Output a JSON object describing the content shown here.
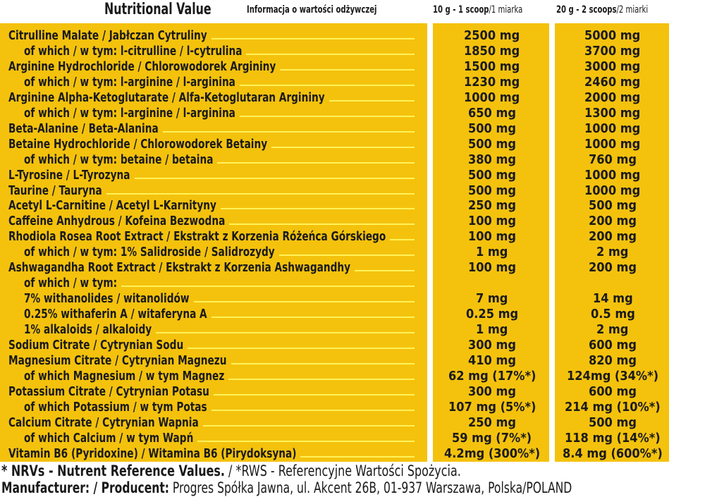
{
  "header": {
    "title": "Nutritional Value",
    "subtitle_pl": "Informacja o wartości odżywczej",
    "col1_bold": "10 g - 1 scoop",
    "col1_rest": "/1 miarka",
    "col2_bold": "20 g - 2 scoops",
    "col2_rest": "/2 miarki"
  },
  "colors": {
    "panel": "#f4c20d",
    "leader": "#fff25a",
    "text": "#1a1a1a",
    "background": "#ffffff"
  },
  "rows": [
    {
      "label": "Citrulline Malate / Jabłczan Cytruliny",
      "v1": "2500 mg",
      "v2": "5000 mg",
      "indent": 0
    },
    {
      "label": "of which / w tym: l-citrulline / l-cytrulina",
      "v1": "1850 mg",
      "v2": "3700 mg",
      "indent": 1
    },
    {
      "label": "Arginine Hydrochloride / Chlorowodorek Argininy",
      "v1": "1500 mg",
      "v2": "3000 mg",
      "indent": 0
    },
    {
      "label": "of which / w tym: l-arginine / l-arginina",
      "v1": "1230 mg",
      "v2": "2460 mg",
      "indent": 1
    },
    {
      "label": "Arginine Alpha-Ketoglutarate / Alfa-Ketoglutaran Argininy",
      "v1": "1000 mg",
      "v2": "2000 mg",
      "indent": 0
    },
    {
      "label": "of which / w tym: l-arginine / l-arginina",
      "v1": "650 mg",
      "v2": "1300 mg",
      "indent": 1
    },
    {
      "label": "Beta-Alanine / Beta-Alanina",
      "v1": "500 mg",
      "v2": "1000 mg",
      "indent": 0
    },
    {
      "label": "Betaine Hydrochloride / Chlorowodorek Betainy",
      "v1": "500 mg",
      "v2": "1000 mg",
      "indent": 0
    },
    {
      "label": "of which / w tym: betaine / betaina",
      "v1": "380 mg",
      "v2": "760 mg",
      "indent": 1
    },
    {
      "label": "L-Tyrosine / L-Tyrozyna",
      "v1": "500 mg",
      "v2": "1000 mg",
      "indent": 0
    },
    {
      "label": "Taurine / Tauryna",
      "v1": "500 mg",
      "v2": "1000 mg",
      "indent": 0
    },
    {
      "label": "Acetyl L-Carnitine / Acetyl L-Karnityny",
      "v1": "250 mg",
      "v2": "500 mg",
      "indent": 0
    },
    {
      "label": "Caffeine Anhydrous / Kofeina Bezwodna",
      "v1": "100 mg",
      "v2": "200 mg",
      "indent": 0
    },
    {
      "label": "Rhodiola Rosea Root Extract / Ekstrakt z Korzenia Różeńca Górskiego",
      "v1": "100 mg",
      "v2": "200 mg",
      "indent": 0
    },
    {
      "label": "of which / w tym:  1% Salidroside / Salidrozydy",
      "v1": "1 mg",
      "v2": "2 mg",
      "indent": 1
    },
    {
      "label": "Ashwagandha Root Extract / Ekstrakt z Korzenia Ashwagandhy",
      "v1": "100 mg",
      "v2": "200 mg",
      "indent": 0
    },
    {
      "label": "of which / w tym:",
      "v1": "",
      "v2": "",
      "indent": 1
    },
    {
      "label": "7% withanolides / witanolidów",
      "v1": "7 mg",
      "v2": "14 mg",
      "indent": 1
    },
    {
      "label": "0.25% withaferin A / witaferyna A",
      "v1": "0.25 mg",
      "v2": "0.5 mg",
      "indent": 1
    },
    {
      "label": "1% alkaloids / alkaloidy",
      "v1": "1 mg",
      "v2": "2 mg",
      "indent": 1
    },
    {
      "label": "Sodium Citrate / Cytrynian Sodu",
      "v1": "300 mg",
      "v2": "600 mg",
      "indent": 0
    },
    {
      "label": "Magnesium Citrate / Cytrynian Magnezu",
      "v1": "410 mg",
      "v2": "820 mg",
      "indent": 0
    },
    {
      "label": "of which Magnesium / w tym Magnez",
      "v1": "62 mg (17%*)",
      "v2": "124mg (34%*)",
      "indent": 1
    },
    {
      "label": "Potassium Citrate / Cytrynian Potasu",
      "v1": "300 mg",
      "v2": "600 mg",
      "indent": 0
    },
    {
      "label": "of which Potassium / w tym Potas",
      "v1": "107 mg (5%*)",
      "v2": "214 mg (10%*)",
      "indent": 1
    },
    {
      "label": "Calcium Citrate / Cytrynian Wapnia",
      "v1": "250 mg",
      "v2": "500 mg",
      "indent": 0
    },
    {
      "label": "of which Calcium / w tym Wapń",
      "v1": "59 mg (7%*)",
      "v2": "118 mg (14%*)",
      "indent": 1
    },
    {
      "label": "Vitamin B6 (Pyridoxine) / Witamina B6 (Pirydoksyna)",
      "v1": "4.2mg (300%*)",
      "v2": "8.4 mg (600%*)",
      "indent": 0
    }
  ],
  "footnote": {
    "bold": "* NRVs - Nutrent Reference Values.",
    "rest": " / *RWS - Referencyjne Wartości Spożycia."
  },
  "manufacturer": {
    "bold": "Manufacturer: / Producent:",
    "rest": " Progres Spółka Jawna, ul. Akcent 26B, 01-937 Warszawa, Polska/POLAND"
  }
}
